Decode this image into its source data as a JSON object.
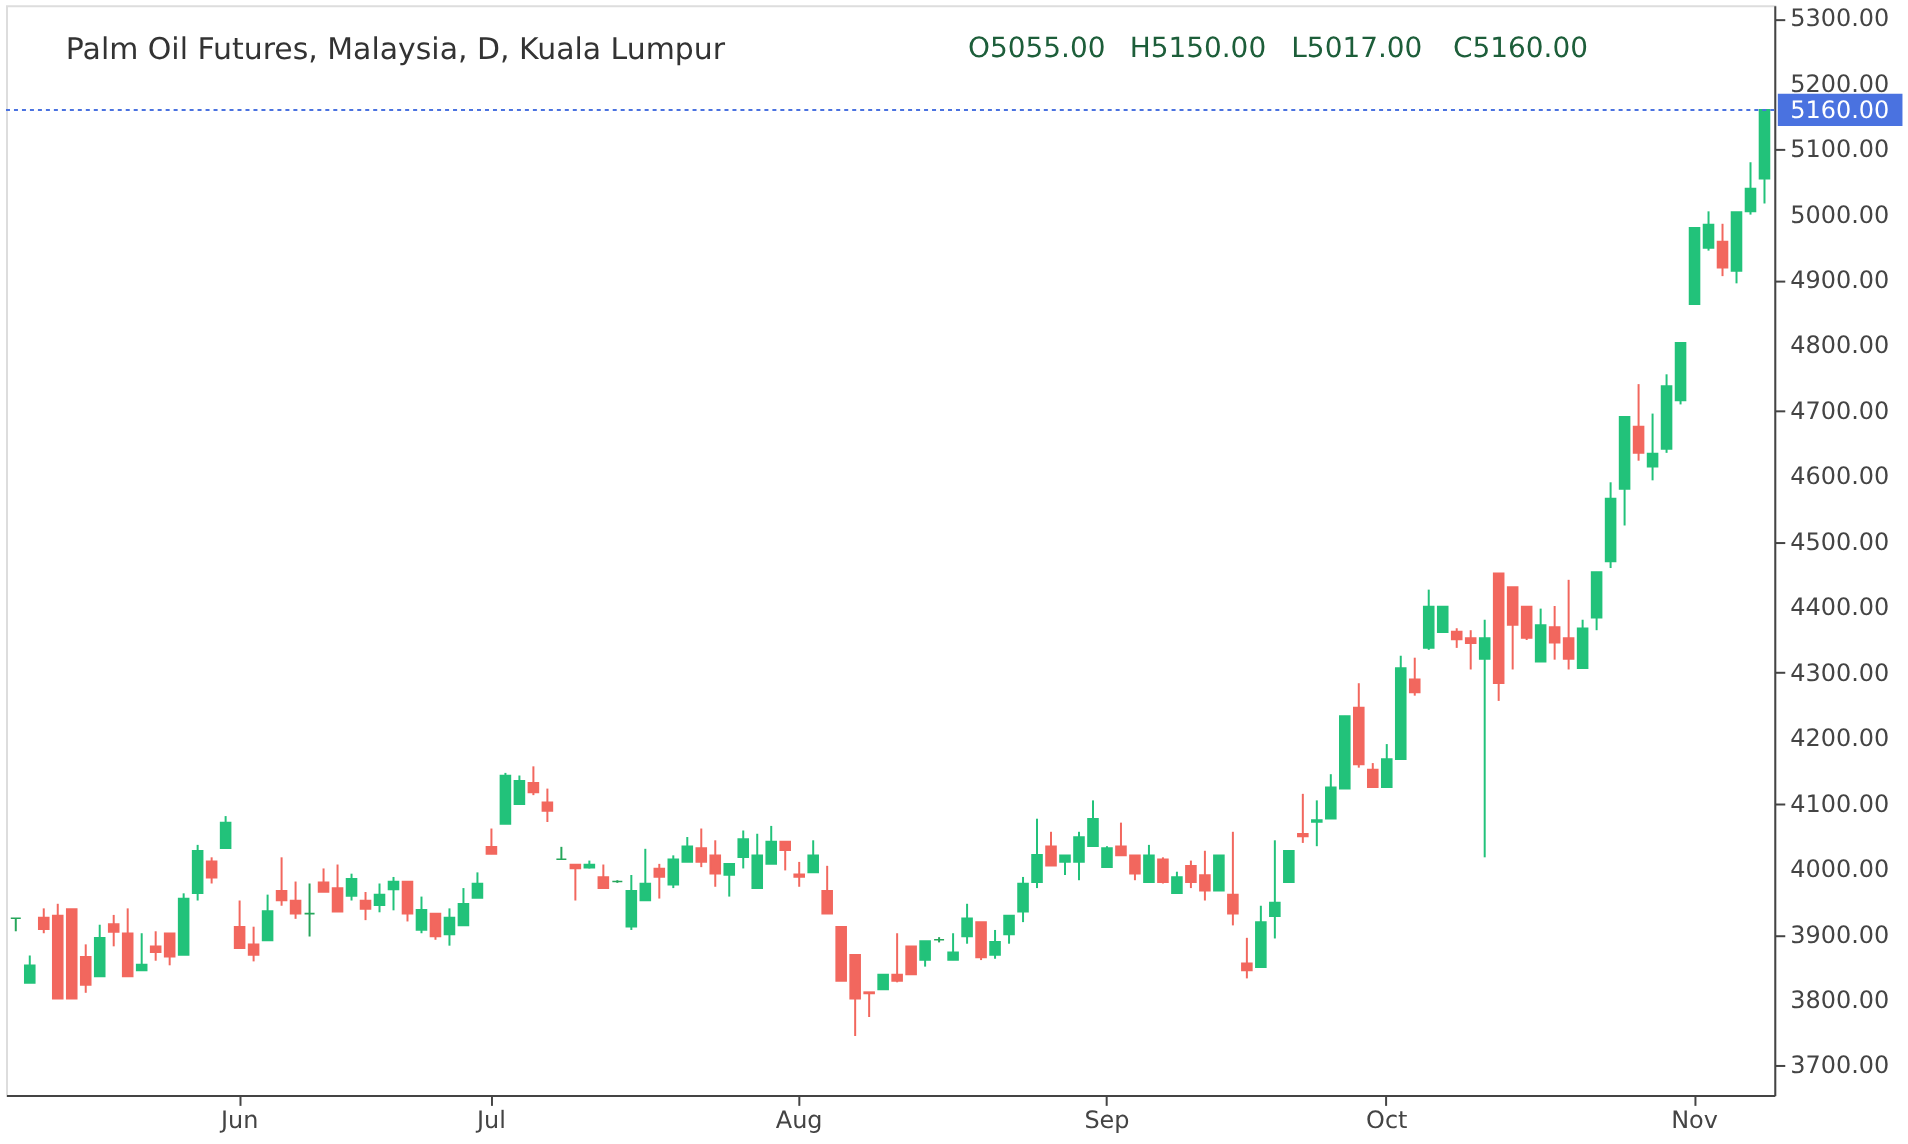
{
  "chart_data": {
    "type": "candlestick",
    "title": "Palm Oil Futures, Malaysia, D, Kuala Lumpur",
    "annotations": [
      "O5055.00",
      "H5150.00",
      "L5017.00",
      "C5160.00"
    ],
    "categories": [
      null,
      null,
      null,
      null,
      null,
      null,
      null,
      null,
      null,
      null,
      null,
      null,
      null,
      null,
      null,
      null,
      "Jun",
      null,
      null,
      null,
      null,
      null,
      null,
      null,
      null,
      null,
      null,
      null,
      null,
      null,
      null,
      null,
      null,
      null,
      "Jul",
      null,
      null,
      null,
      null,
      null,
      null,
      null,
      null,
      null,
      null,
      null,
      null,
      null,
      null,
      null,
      null,
      null,
      null,
      null,
      null,
      null,
      "Aug",
      null,
      null,
      null,
      null,
      null,
      null,
      null,
      null,
      null,
      null,
      null,
      null,
      null,
      null,
      null,
      null,
      null,
      null,
      null,
      null,
      null,
      "Sep",
      null,
      null,
      null,
      null,
      null,
      null,
      null,
      null,
      null,
      null,
      null,
      null,
      null,
      null,
      null,
      null,
      null,
      null,
      null,
      "Oct",
      null,
      null,
      null,
      null,
      null,
      null,
      null,
      null,
      null,
      null,
      null,
      null,
      null,
      null,
      null,
      null,
      null,
      null,
      null,
      null,
      null,
      "Nov",
      null,
      null,
      null,
      null,
      null
    ],
    "ohlc": [
      [
        3925,
        3925,
        3905,
        3925
      ],
      [
        3826,
        3868,
        3826,
        3853
      ],
      [
        3926,
        3940,
        3902,
        3908
      ],
      [
        3929,
        3947,
        3802,
        3802
      ],
      [
        3939,
        3939,
        3802,
        3802
      ],
      [
        3866,
        3885,
        3811,
        3823
      ],
      [
        3836,
        3915,
        3836,
        3895
      ],
      [
        3916,
        3930,
        3882,
        3904
      ],
      [
        3902,
        3940,
        3836,
        3836
      ],
      [
        3845,
        3902,
        3845,
        3854
      ],
      [
        3882,
        3905,
        3860,
        3873
      ],
      [
        3902,
        3902,
        3853,
        3866
      ],
      [
        3869,
        3963,
        3869,
        3955
      ],
      [
        3963,
        4037,
        3952,
        4028
      ],
      [
        4012,
        4018,
        3978,
        3987
      ],
      [
        4032,
        4081,
        4032,
        4071
      ],
      [
        3912,
        3952,
        3879,
        3879
      ],
      [
        3885,
        3912,
        3859,
        3869
      ],
      [
        3891,
        3961,
        3891,
        3936
      ],
      [
        3967,
        4018,
        3944,
        3952
      ],
      [
        3952,
        3981,
        3924,
        3932
      ],
      [
        3932,
        3978,
        3897,
        3932
      ],
      [
        3980,
        4001,
        3965,
        3965
      ],
      [
        3971,
        4007,
        3935,
        3935
      ],
      [
        3959,
        3993,
        3952,
        3985
      ],
      [
        3952,
        3965,
        3922,
        3939
      ],
      [
        3945,
        3978,
        3934,
        3961
      ],
      [
        3969,
        3988,
        3937,
        3981
      ],
      [
        3981,
        3981,
        3920,
        3932
      ],
      [
        3907,
        3958,
        3902,
        3938
      ],
      [
        3932,
        3932,
        3892,
        3897
      ],
      [
        3900,
        3940,
        3883,
        3926
      ],
      [
        3914,
        3971,
        3914,
        3947
      ],
      [
        3956,
        3995,
        3956,
        3978
      ],
      [
        4034,
        4062,
        4023,
        4023
      ],
      [
        4069,
        4147,
        4069,
        4143
      ],
      [
        4099,
        4143,
        4099,
        4135
      ],
      [
        4132,
        4157,
        4113,
        4117
      ],
      [
        4102,
        4123,
        4072,
        4089
      ],
      [
        4015,
        4034,
        4015,
        4015
      ],
      [
        4007,
        4007,
        3952,
        4001
      ],
      [
        4002,
        4013,
        4001,
        4007
      ],
      [
        3988,
        4007,
        3971,
        3971
      ],
      [
        3981,
        3983,
        3979,
        3981
      ],
      [
        3912,
        3991,
        3907,
        3967
      ],
      [
        3952,
        4031,
        3952,
        3978
      ],
      [
        4001,
        4008,
        3955,
        3988
      ],
      [
        3976,
        4021,
        3971,
        4015
      ],
      [
        4011,
        4049,
        4011,
        4035
      ],
      [
        4032,
        4062,
        4003,
        4011
      ],
      [
        4021,
        4044,
        3973,
        3993
      ],
      [
        3991,
        4008,
        3958,
        4008
      ],
      [
        4018,
        4059,
        4001,
        4046
      ],
      [
        3971,
        4054,
        3971,
        4021
      ],
      [
        4008,
        4066,
        4008,
        4042
      ],
      [
        4042,
        4042,
        3998,
        4029
      ],
      [
        3992,
        4011,
        3973,
        3988
      ],
      [
        3995,
        4044,
        3995,
        4021
      ],
      [
        3967,
        4005,
        3932,
        3932
      ],
      [
        3912,
        3912,
        3829,
        3829
      ],
      [
        3869,
        3869,
        3745,
        3802
      ],
      [
        3812,
        3812,
        3774,
        3810
      ],
      [
        3816,
        3839,
        3816,
        3839
      ],
      [
        3839,
        3902,
        3827,
        3829
      ],
      [
        3882,
        3882,
        3839,
        3839
      ],
      [
        3861,
        3890,
        3851,
        3890
      ],
      [
        3892,
        3896,
        3888,
        3892
      ],
      [
        3861,
        3902,
        3861,
        3873
      ],
      [
        3897,
        3947,
        3886,
        3925
      ],
      [
        3919,
        3919,
        3861,
        3865
      ],
      [
        3869,
        3907,
        3863,
        3889
      ],
      [
        3900,
        3929,
        3886,
        3929
      ],
      [
        3935,
        3988,
        3919,
        3978
      ],
      [
        3980,
        4077,
        3971,
        4022
      ],
      [
        4035,
        4057,
        4005,
        4005
      ],
      [
        4011,
        4021,
        3991,
        4021
      ],
      [
        4011,
        4057,
        3983,
        4049
      ],
      [
        4035,
        4105,
        4035,
        4077
      ],
      [
        4003,
        4035,
        4003,
        4032
      ],
      [
        4035,
        4071,
        4021,
        4021
      ],
      [
        4021,
        4021,
        3983,
        3993
      ],
      [
        3980,
        4037,
        3980,
        4021
      ],
      [
        4015,
        4018,
        3978,
        3980
      ],
      [
        3963,
        3996,
        3963,
        3988
      ],
      [
        4005,
        4013,
        3971,
        3980
      ],
      [
        3991,
        4028,
        3952,
        3967
      ],
      [
        3967,
        4021,
        3967,
        4021
      ],
      [
        3961,
        4057,
        3914,
        3932
      ],
      [
        3856,
        3895,
        3833,
        3845
      ],
      [
        3850,
        3944,
        3850,
        3919
      ],
      [
        3928,
        4044,
        3894,
        3949
      ],
      [
        3980,
        4028,
        3980,
        4028
      ],
      [
        4054,
        4115,
        4040,
        4050
      ],
      [
        4072,
        4105,
        4035,
        4075
      ],
      [
        4077,
        4145,
        4077,
        4125
      ],
      [
        4123,
        4234,
        4123,
        4234
      ],
      [
        4247,
        4284,
        4155,
        4160
      ],
      [
        4152,
        4162,
        4125,
        4125
      ],
      [
        4125,
        4191,
        4125,
        4168
      ],
      [
        4168,
        4326,
        4168,
        4307
      ],
      [
        4290,
        4323,
        4265,
        4270
      ],
      [
        4338,
        4427,
        4335,
        4401
      ],
      [
        4362,
        4401,
        4362,
        4401
      ],
      [
        4363,
        4368,
        4338,
        4351
      ],
      [
        4353,
        4365,
        4305,
        4345
      ],
      [
        4321,
        4381,
        4018,
        4353
      ],
      [
        4452,
        4452,
        4257,
        4284
      ],
      [
        4431,
        4431,
        4305,
        4373
      ],
      [
        4401,
        4401,
        4350,
        4353
      ],
      [
        4317,
        4398,
        4317,
        4373
      ],
      [
        4370,
        4402,
        4320,
        4346
      ],
      [
        4353,
        4442,
        4305,
        4321
      ],
      [
        4307,
        4381,
        4307,
        4368
      ],
      [
        4384,
        4454,
        4365,
        4454
      ],
      [
        4470,
        4591,
        4460,
        4566
      ],
      [
        4581,
        4691,
        4525,
        4691
      ],
      [
        4676,
        4741,
        4624,
        4636
      ],
      [
        4615,
        4696,
        4594,
        4635
      ],
      [
        4642,
        4756,
        4636,
        4738
      ],
      [
        4716,
        4804,
        4710,
        4804
      ],
      [
        4863,
        4980,
        4863,
        4980
      ],
      [
        4949,
        5005,
        4945,
        4985
      ],
      [
        4959,
        4986,
        4906,
        4919
      ],
      [
        4914,
        5004,
        4895,
        5004
      ],
      [
        5005,
        5080,
        5000,
        5040
      ],
      [
        5055,
        5160,
        5017,
        5160
      ]
    ],
    "colors": [
      "#26a65b",
      "#22c27a",
      "#f2675e",
      "#f2675e",
      "#f2675e",
      "#f2675e",
      "#22c27a",
      "#f2675e",
      "#f2675e",
      "#22c27a",
      "#f2675e",
      "#f2675e",
      "#22c27a",
      "#22c27a",
      "#f2675e",
      "#22c27a",
      "#f2675e",
      "#f2675e",
      "#22c27a",
      "#f2675e",
      "#f2675e",
      "#26a65b",
      "#f2675e",
      "#f2675e",
      "#22c27a",
      "#f2675e",
      "#22c27a",
      "#22c27a",
      "#f2675e",
      "#22c27a",
      "#f2675e",
      "#22c27a",
      "#22c27a",
      "#22c27a",
      "#f2675e",
      "#22c27a",
      "#22c27a",
      "#f2675e",
      "#f2675e",
      "#26a65b",
      "#f2675e",
      "#22c27a",
      "#f2675e",
      "#26a65b",
      "#22c27a",
      "#22c27a",
      "#f2675e",
      "#22c27a",
      "#22c27a",
      "#f2675e",
      "#f2675e",
      "#22c27a",
      "#22c27a",
      "#22c27a",
      "#22c27a",
      "#f2675e",
      "#f2675e",
      "#22c27a",
      "#f2675e",
      "#f2675e",
      "#f2675e",
      "#f2675e",
      "#22c27a",
      "#f2675e",
      "#f2675e",
      "#22c27a",
      "#26a65b",
      "#22c27a",
      "#22c27a",
      "#f2675e",
      "#22c27a",
      "#22c27a",
      "#22c27a",
      "#22c27a",
      "#f2675e",
      "#22c27a",
      "#22c27a",
      "#22c27a",
      "#22c27a",
      "#f2675e",
      "#f2675e",
      "#22c27a",
      "#f2675e",
      "#22c27a",
      "#f2675e",
      "#f2675e",
      "#22c27a",
      "#f2675e",
      "#f2675e",
      "#22c27a",
      "#22c27a",
      "#22c27a",
      "#f2675e",
      "#22c27a",
      "#22c27a",
      "#22c27a",
      "#f2675e",
      "#f2675e",
      "#22c27a",
      "#22c27a",
      "#f2675e",
      "#22c27a",
      "#22c27a",
      "#f2675e",
      "#f2675e",
      "#22c27a",
      "#f2675e",
      "#f2675e",
      "#f2675e",
      "#22c27a",
      "#f2675e",
      "#f2675e",
      "#22c27a",
      "#22c27a",
      "#22c27a",
      "#22c27a",
      "#f2675e",
      "#22c27a",
      "#22c27a",
      "#22c27a",
      "#22c27a",
      "#22c27a",
      "#f2675e",
      "#22c27a",
      "#22c27a",
      "#22c27a"
    ],
    "ylim": [
      3655,
      5320
    ],
    "yticks": [
      {
        "value": 3700,
        "label": "3700.00"
      },
      {
        "value": 3800,
        "label": "3800.00"
      },
      {
        "value": 3900,
        "label": "3900.00"
      },
      {
        "value": 4000,
        "label": "4000.00"
      },
      {
        "value": 4100,
        "label": "4100.00"
      },
      {
        "value": 4200,
        "label": "4200.00"
      },
      {
        "value": 4300,
        "label": "4300.00"
      },
      {
        "value": 4400,
        "label": "4400.00"
      },
      {
        "value": 4500,
        "label": "4500.00"
      },
      {
        "value": 4600,
        "label": "4600.00"
      },
      {
        "value": 4700,
        "label": "4700.00"
      },
      {
        "value": 4800,
        "label": "4800.00"
      },
      {
        "value": 4900,
        "label": "4900.00"
      },
      {
        "value": 5000,
        "label": "5000.00"
      },
      {
        "value": 5100,
        "label": "5100.00"
      },
      {
        "value": 5200,
        "label": "5200.00"
      },
      {
        "value": 5300,
        "label": "5300.00"
      }
    ],
    "ref_lines": [
      {
        "axis": "y",
        "value": 5160,
        "label": "5160.00",
        "color": "#4a72e0",
        "line_style": "dotted"
      }
    ],
    "grid": false
  }
}
